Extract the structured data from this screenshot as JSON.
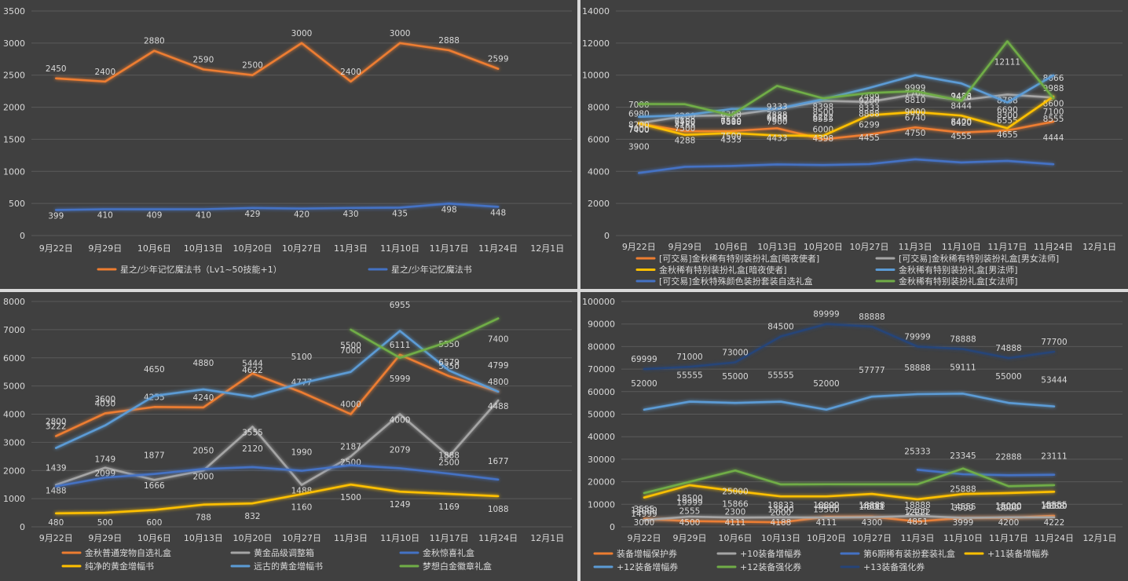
{
  "chart_data": [
    {
      "type": "line",
      "categories": [
        "9月22日",
        "9月29日",
        "10月6日",
        "10月13日",
        "10月20日",
        "10月27日",
        "11月3日",
        "11月10日",
        "11月17日",
        "11月24日",
        "12月1日"
      ],
      "ylim": [
        0,
        3500
      ],
      "ystep": 500,
      "grid": true,
      "series": [
        {
          "name": "星之/少年记忆魔法书（Lv1~50技能+1）",
          "color": "#ed7d31",
          "values": [
            2450,
            2400,
            2880,
            2590,
            2500,
            3000,
            2400,
            3000,
            2888,
            2599,
            null
          ]
        },
        {
          "name": "星之/少年记忆魔法书",
          "color": "#4472c4",
          "values": [
            399,
            410,
            409,
            410,
            429,
            420,
            430,
            435,
            498,
            448,
            null
          ]
        }
      ]
    },
    {
      "type": "line",
      "categories": [
        "9月22日",
        "9月29日",
        "10月6日",
        "10月13日",
        "10月20日",
        "10月27日",
        "11月3日",
        "11月10日",
        "11月17日",
        "11月24日",
        "12月1日"
      ],
      "ylim": [
        0,
        14000
      ],
      "ystep": 2000,
      "grid": true,
      "series": [
        {
          "name": "[可交易]金秋稀有特别装扮礼盒[暗夜使者]",
          "color": "#ed7d31",
          "values": [
            6980,
            6500,
            6510,
            6688,
            6000,
            6299,
            6740,
            6420,
            6555,
            7100,
            null
          ]
        },
        {
          "name": "[可交易]金秋稀有特别装扮礼盒[男女法师]",
          "color": "#a5a5a5",
          "values": [
            7000,
            7450,
            7500,
            7888,
            8398,
            8333,
            8810,
            8444,
            8788,
            8600,
            null
          ]
        },
        {
          "name": "金秋稀有特别装扮礼盒[暗夜使者]",
          "color": "#ffc000",
          "values": [
            7000,
            6280,
            6388,
            6240,
            6222,
            7499,
            7700,
            7478,
            6690,
            8666,
            null
          ]
        },
        {
          "name": "金秋稀有特别装扮礼盒[男法师]",
          "color": "#5b9bd5",
          "values": [
            7400,
            7500,
            7888,
            7900,
            8500,
            9200,
            9999,
            9488,
            8300,
            9988,
            null
          ]
        },
        {
          "name": "[可交易]金秋特殊颜色装扮套装自选礼盒",
          "color": "#4472c4",
          "values": [
            3900,
            4288,
            4333,
            4433,
            4398,
            4455,
            4750,
            4555,
            4655,
            4444,
            null
          ]
        },
        {
          "name": "金秋稀有特别装扮礼盒[女法师]",
          "color": "#70ad47",
          "values": [
            8200,
            8188,
            7500,
            9333,
            8555,
            8888,
            9000,
            8400,
            12111,
            8555,
            null
          ]
        }
      ]
    },
    {
      "type": "line",
      "categories": [
        "9月22日",
        "9月29日",
        "10月6日",
        "10月13日",
        "10月20日",
        "10月27日",
        "11月3日",
        "11月10日",
        "11月17日",
        "11月24日",
        "12月1日"
      ],
      "ylim": [
        0,
        8000
      ],
      "ystep": 1000,
      "grid": true,
      "series": [
        {
          "name": "金秋普通宠物自选礼盒",
          "color": "#ed7d31",
          "values": [
            3222,
            4030,
            4255,
            4240,
            5444,
            4777,
            4000,
            6111,
            5350,
            4800,
            null
          ]
        },
        {
          "name": "黄金品级调整箱",
          "color": "#a5a5a5",
          "values": [
            1488,
            2099,
            1666,
            2000,
            3555,
            1488,
            2500,
            4000,
            2500,
            4488,
            null
          ]
        },
        {
          "name": "金秋惊喜礼盒",
          "color": "#4472c4",
          "values": [
            1439,
            1749,
            1877,
            2050,
            2120,
            1990,
            2187,
            2079,
            1888,
            1677,
            null
          ]
        },
        {
          "name": "纯净的黄金增幅书",
          "color": "#ffc000",
          "values": [
            480,
            500,
            600,
            788,
            832,
            1160,
            1500,
            1249,
            1169,
            1088,
            null
          ]
        },
        {
          "name": "远古的黄金增幅书",
          "color": "#5b9bd5",
          "values": [
            2800,
            3600,
            4650,
            4880,
            4622,
            5100,
            5500,
            6955,
            5550,
            4799,
            null
          ]
        },
        {
          "name": "梦想白金徽章礼盒",
          "color": "#70ad47",
          "values": [
            null,
            null,
            null,
            null,
            null,
            null,
            7000,
            5999,
            6579,
            7400,
            null
          ]
        }
      ]
    },
    {
      "type": "line",
      "categories": [
        "9月22日",
        "9月29日",
        "10月6日",
        "10月13日",
        "10月20日",
        "10月27日",
        "11月3日",
        "11月10日",
        "11月17日",
        "11月24日",
        "12月1日"
      ],
      "ylim": [
        0,
        100000
      ],
      "ystep": 10000,
      "grid": true,
      "series": [
        {
          "name": "装备增幅保护券",
          "color": "#ed7d31",
          "values": [
            3555,
            2555,
            2300,
            2000,
            4444,
            4500,
            2400,
            3999,
            3999,
            4888,
            null
          ]
        },
        {
          "name": "+10装备增幅券",
          "color": "#a5a5a5",
          "values": [
            3000,
            4500,
            4111,
            4188,
            4111,
            4300,
            4851,
            3999,
            4200,
            4222,
            null
          ]
        },
        {
          "name": "第6期稀有装扮套装礼盒",
          "color": "#4472c4",
          "values": [
            null,
            null,
            null,
            null,
            null,
            null,
            25333,
            23345,
            22888,
            23111,
            null
          ]
        },
        {
          "name": "+11装备增幅券",
          "color": "#ffc000",
          "values": [
            13000,
            18500,
            15866,
            13500,
            13500,
            14611,
            12222,
            14555,
            15000,
            15555,
            null
          ]
        },
        {
          "name": "+12装备增幅券",
          "color": "#5b9bd5",
          "values": [
            52000,
            55555,
            55000,
            55555,
            52000,
            57777,
            58888,
            59111,
            55000,
            53444,
            null
          ]
        },
        {
          "name": "+12装备强化券",
          "color": "#70ad47",
          "values": [
            14999,
            19999,
            25000,
            18833,
            18899,
            18888,
            18888,
            25888,
            18000,
            18500,
            null
          ]
        },
        {
          "name": "+13装备强化券",
          "color": "#264478",
          "values": [
            69999,
            71000,
            73000,
            84500,
            89999,
            88888,
            79999,
            78888,
            74888,
            77700,
            null
          ]
        }
      ]
    }
  ]
}
